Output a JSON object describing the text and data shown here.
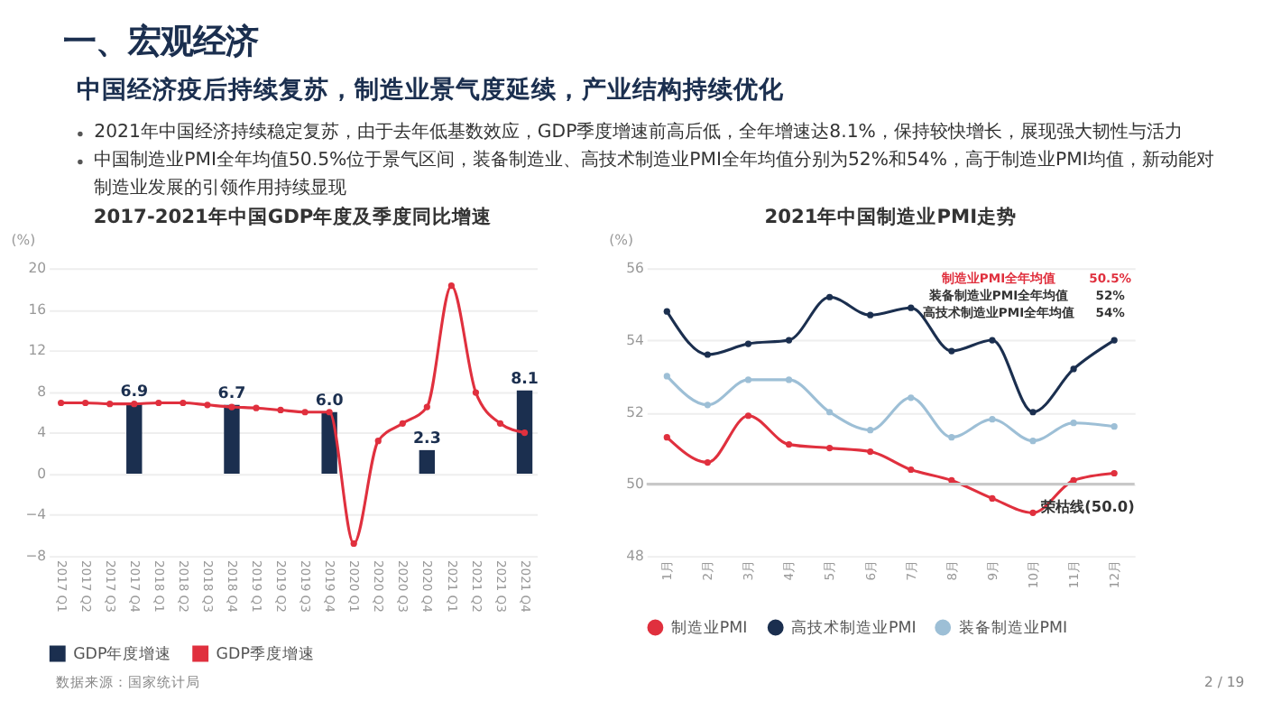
{
  "chart_data": [
    {
      "type": "bar",
      "title": "2017-2021年中国GDP年度及季度同比增速",
      "ylabel": "(%)",
      "categories": [
        "2017 Q1",
        "2017 Q2",
        "2017 Q3",
        "2017 Q4",
        "2018 Q1",
        "2018 Q2",
        "2018 Q3",
        "2018 Q4",
        "2019 Q1",
        "2019 Q2",
        "2019 Q3",
        "2019 Q4",
        "2020 Q1",
        "2020 Q2",
        "2020 Q3",
        "2020 Q4",
        "2021 Q1",
        "2021 Q2",
        "2021 Q3",
        "2021 Q4"
      ],
      "series": [
        {
          "name": "GDP年度增速",
          "type": "bar",
          "color": "#1b2f4f",
          "values": [
            null,
            null,
            null,
            6.9,
            null,
            null,
            null,
            6.7,
            null,
            null,
            null,
            6.0,
            null,
            null,
            null,
            2.3,
            null,
            null,
            null,
            8.1
          ],
          "value_labels": [
            null,
            null,
            null,
            "6.9",
            null,
            null,
            null,
            "6.7",
            null,
            null,
            null,
            "6.0",
            null,
            null,
            null,
            "2.3",
            null,
            null,
            null,
            "8.1"
          ]
        },
        {
          "name": "GDP季度增速",
          "type": "line",
          "color": "#e0303e",
          "values": [
            6.9,
            6.9,
            6.8,
            6.8,
            6.9,
            6.9,
            6.7,
            6.5,
            6.4,
            6.2,
            6.0,
            6.0,
            -6.8,
            3.2,
            4.9,
            6.5,
            18.3,
            7.9,
            4.9,
            4.0
          ]
        }
      ],
      "ylim": [
        -8,
        20
      ],
      "yticks": [
        -8,
        -4,
        0,
        4,
        8,
        12,
        16,
        20
      ],
      "grid": "y",
      "legend": "bottom",
      "marker": "circle",
      "annotations": [
        "一、宏观经济",
        "中国经济疫后持续复苏，制造业景气度延续，产业结构持续优化",
        "2021年中国经济持续稳定复苏，由于去年低基数效应，GDP季度增速前高后低，全年增速达8.1%，保持较快增长，展现强大韧性与活力",
        "中国制造业PMI全年均值50.5%位于景气区间，装备制造业、高技术制造业PMI全年均值分别为52%和54%，高于制造业PMI均值，新动能对制造业发展的引领作用持续显现",
        "数据来源：国家统计局"
      ]
    },
    {
      "type": "line",
      "title": "2021年中国制造业PMI走势",
      "ylabel": "(%)",
      "categories": [
        "1月",
        "2月",
        "3月",
        "4月",
        "5月",
        "6月",
        "7月",
        "8月",
        "9月",
        "10月",
        "11月",
        "12月"
      ],
      "series": [
        {
          "name": "制造业PMI",
          "color": "#e0303e",
          "values": [
            51.3,
            50.6,
            51.9,
            51.1,
            51.0,
            50.9,
            50.4,
            50.1,
            49.6,
            49.2,
            50.1,
            50.3
          ]
        },
        {
          "name": "高技术制造业PMI",
          "color": "#1b2f4f",
          "values": [
            54.8,
            53.6,
            53.9,
            54.0,
            55.2,
            54.7,
            54.9,
            53.7,
            54.0,
            52.0,
            53.2,
            54.0
          ]
        },
        {
          "name": "装备制造业PMI",
          "color": "#9dbfd6",
          "values": [
            53.0,
            52.2,
            52.9,
            52.9,
            52.0,
            51.5,
            52.4,
            51.3,
            51.8,
            51.2,
            51.7,
            51.6
          ]
        }
      ],
      "ylim": [
        48,
        56
      ],
      "yticks": [
        48,
        50,
        52,
        54,
        56
      ],
      "grid": "y",
      "legend": "bottom",
      "marker": "circle",
      "ref_lines": [
        {
          "axis": "y",
          "value": 50.0,
          "label": "荣枯线(50.0)",
          "color": "#c8c8c8"
        }
      ],
      "annotations": [
        "制造业PMI全年均值",
        "50.5%",
        "装备制造业PMI全年均值",
        "52%",
        "高技术制造业PMI全年均值",
        "54%",
        "2 / 19"
      ]
    }
  ]
}
